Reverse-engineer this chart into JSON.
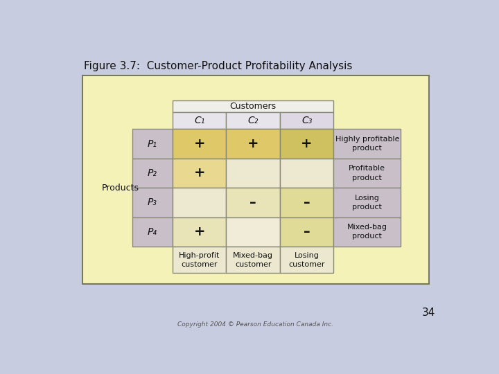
{
  "title": "Figure 3.7:  Customer-Product Profitability Analysis",
  "title_fontsize": 11,
  "bg_outer": "#c8cce0",
  "bg_inner": "#f5f2b8",
  "cell_mauve": "#c8bfc8",
  "cell_yellow_p1": "#e8cc70",
  "cell_yellow_p2_c1": "#e8d890",
  "cell_cream_p2": "#f0ead8",
  "cell_cream_p3_c1": "#f0ead8",
  "cell_cream_p3": "#f0e8c0",
  "cell_cream_p4_c1": "#f0e8c0",
  "cell_cream_p4": "#f5f0e0",
  "cell_cust_header": "#e8e4f0",
  "cell_bot_label": "#ede8d0",
  "border_color": "#888877",
  "text_color": "#111111",
  "products": [
    "P₁",
    "P₂",
    "P₃",
    "P₄"
  ],
  "customers": [
    "C₁",
    "C₂",
    "C₃"
  ],
  "grid_symbols": [
    [
      "+",
      "+",
      "+"
    ],
    [
      "+",
      "",
      ""
    ],
    [
      "",
      "–",
      "–"
    ],
    [
      "+",
      "",
      "–"
    ]
  ],
  "product_labels": [
    "Highly profitable\nproduct",
    "Profitable\nproduct",
    "Losing\nproduct",
    "Mixed-bag\nproduct"
  ],
  "customer_labels": [
    "High-profit\ncustomer",
    "Mixed-bag\ncustomer",
    "Losing\ncustomer"
  ],
  "symbol_fontsize": 14,
  "label_fontsize": 8,
  "copyright": "Copyright 2004 © Pearson Education Canada Inc.",
  "page_number": "34",
  "row_cell_colors": [
    [
      "#e8cc70",
      "#dfc878",
      "#d8c070"
    ],
    [
      "#e8d890",
      "#f0ead8",
      "#f0ead8"
    ],
    [
      "#f0ead8",
      "#f0e8c0",
      "#f0e0b0"
    ],
    [
      "#f0e8c0",
      "#f5f0e0",
      "#f0e0b0"
    ]
  ]
}
